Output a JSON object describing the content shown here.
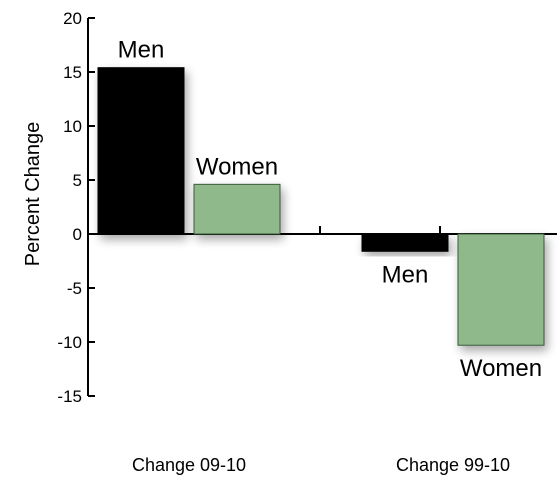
{
  "chart_data": {
    "type": "bar",
    "title": "",
    "xlabel": "",
    "ylabel": "Percent Change",
    "ylim": [
      -15,
      20
    ],
    "yticks": [
      20,
      15,
      10,
      5,
      0,
      -5,
      -10,
      -15
    ],
    "grid": false,
    "legend": "none",
    "categories": [
      "Change 09-10",
      "Change 99-10"
    ],
    "series": [
      {
        "name": "Men",
        "color": "#000000",
        "values": [
          15.4,
          -1.6
        ]
      },
      {
        "name": "Women",
        "color": "#8fb98b",
        "values": [
          4.6,
          -10.3
        ]
      }
    ]
  }
}
